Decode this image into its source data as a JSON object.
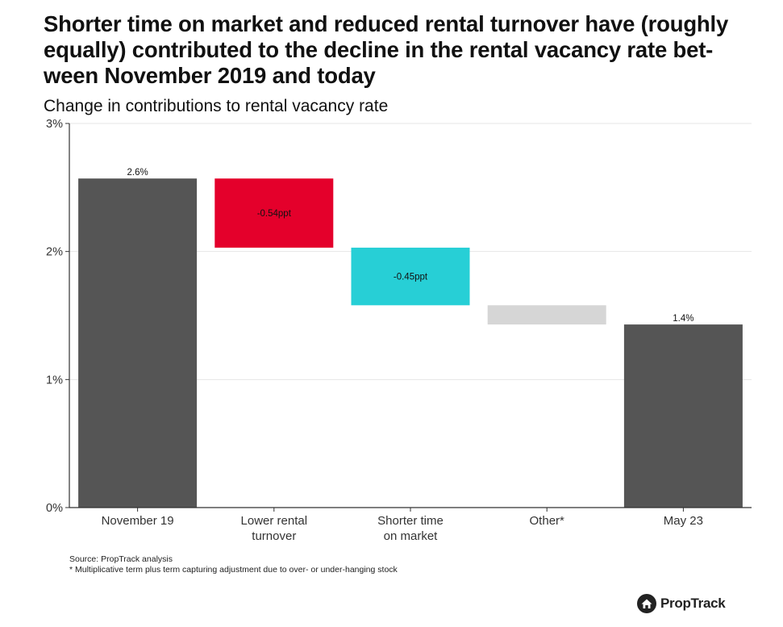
{
  "header": {
    "title": "Shorter time on market and reduced rental turnover have (roughly equally) contributed to the decline in the rental vacancy rate bet-ween November 2019 and today",
    "title_lines": [
      "Shorter time on market and reduced rental turnover have (roughly",
      "equally) contributed to the decline in the rental vacancy rate bet-",
      "ween November 2019 and today"
    ],
    "subtitle": "Change in contributions to rental vacancy rate"
  },
  "chart_data": {
    "type": "bar",
    "subtype": "waterfall",
    "title": "Change in contributions to rental vacancy rate",
    "xlabel": "",
    "ylabel": "",
    "ylim": [
      0,
      3
    ],
    "yticks": [
      0,
      1,
      2,
      3
    ],
    "ytick_labels": [
      "0%",
      "1%",
      "2%",
      "3%"
    ],
    "grid": true,
    "categories": [
      [
        "November 19"
      ],
      [
        "Lower rental",
        "turnover"
      ],
      [
        "Shorter time",
        "on market"
      ],
      [
        "Other*"
      ],
      [
        "May 23"
      ]
    ],
    "bars": [
      {
        "category": "November 19",
        "base": 0,
        "top": 2.57,
        "label": "2.6%",
        "label_pos": "above",
        "color": "#555555"
      },
      {
        "category": "Lower rental turnover",
        "base": 2.03,
        "top": 2.57,
        "label": "-0.54ppt",
        "label_pos": "inside",
        "color": "#e4002b"
      },
      {
        "category": "Shorter time on market",
        "base": 1.58,
        "top": 2.03,
        "label": "-0.45ppt",
        "label_pos": "inside",
        "color": "#27cfd6"
      },
      {
        "category": "Other*",
        "base": 1.43,
        "top": 1.58,
        "label": "",
        "label_pos": "none",
        "color": "#d6d6d6"
      },
      {
        "category": "May 23",
        "base": 0,
        "top": 1.43,
        "label": "1.4%",
        "label_pos": "above",
        "color": "#555555"
      }
    ]
  },
  "footer": {
    "source": "Source: PropTrack analysis",
    "note": "* Multiplicative term plus term capturing adjustment due to over- or under-hanging stock"
  },
  "brand": {
    "name": "PropTrack",
    "icon": "house-icon"
  }
}
